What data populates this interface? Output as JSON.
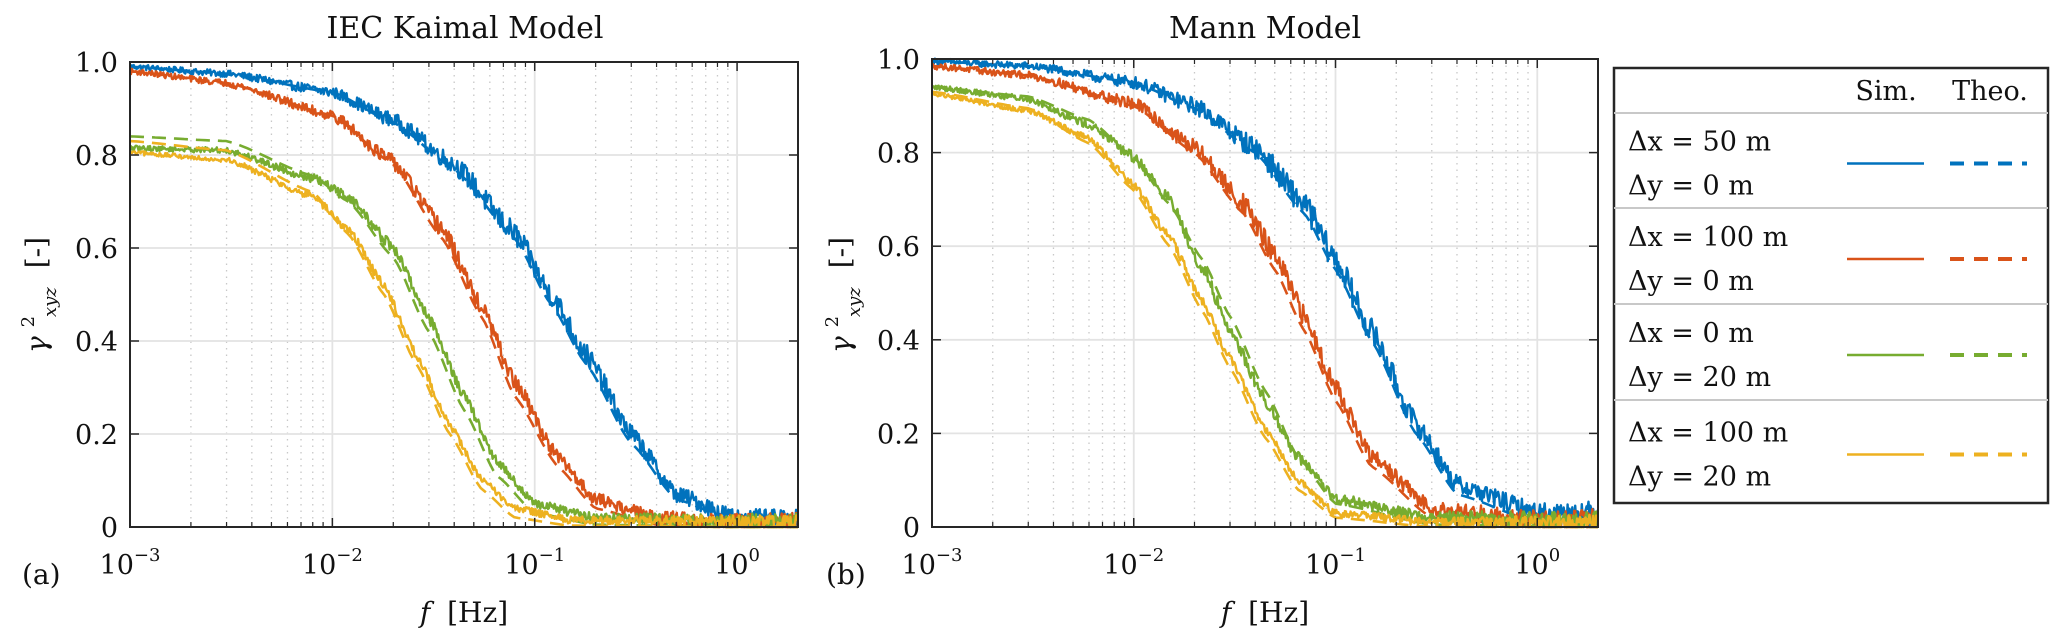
{
  "figure": {
    "colors": {
      "blue": "#0072BD",
      "red": "#D95319",
      "green": "#77AC30",
      "yellow": "#EDB120",
      "grid": "#e3e3e3",
      "axis": "#262626"
    },
    "legend": {
      "header_sim": "Sim.",
      "header_theo": "Theo.",
      "entries": [
        {
          "line1": "Δx = 50 m",
          "line2": "Δy = 0 m",
          "color_key": "blue"
        },
        {
          "line1": "Δx = 100 m",
          "line2": "Δy = 0 m",
          "color_key": "red"
        },
        {
          "line1": "Δx = 0 m",
          "line2": "Δy = 20 m",
          "color_key": "green"
        },
        {
          "line1": "Δx = 100 m",
          "line2": "Δy = 20 m",
          "color_key": "yellow"
        }
      ]
    }
  },
  "chart_data": [
    {
      "type": "line",
      "panel_label": "(a)",
      "title": "IEC Kaimal Model",
      "xlabel_symbol": "f",
      "xlabel_unit": "[Hz]",
      "ylabel_symbol": "γ",
      "ylabel_sup": "2",
      "ylabel_sub": "xyz",
      "ylabel_unit": "[-]",
      "xscale": "log",
      "xlim": [
        0.001,
        2
      ],
      "ylim": [
        0,
        1
      ],
      "xticks": [
        {
          "v": 0.001,
          "base": "10",
          "exp": "−3"
        },
        {
          "v": 0.01,
          "base": "10",
          "exp": "−2"
        },
        {
          "v": 0.1,
          "base": "10",
          "exp": "−1"
        },
        {
          "v": 1,
          "base": "10",
          "exp": "0"
        }
      ],
      "yticks": [
        {
          "v": 0,
          "label": "0"
        },
        {
          "v": 0.2,
          "label": "0.2"
        },
        {
          "v": 0.4,
          "label": "0.4"
        },
        {
          "v": 0.6,
          "label": "0.6"
        },
        {
          "v": 0.8,
          "label": "0.8"
        },
        {
          "v": 1.0,
          "label": "1.0"
        }
      ],
      "grid": true,
      "series": [
        {
          "name": "Δx = 50 m, Δy = 0 m",
          "color_key": "blue",
          "theo": {
            "f": [
              0.001,
              0.003,
              0.01,
              0.02,
              0.04,
              0.08,
              0.12,
              0.18,
              0.3,
              0.5,
              1,
              2
            ],
            "y": [
              0.99,
              0.975,
              0.935,
              0.87,
              0.77,
              0.62,
              0.48,
              0.35,
              0.18,
              0.06,
              0.01,
              0.005
            ]
          },
          "sim": {
            "f": [
              0.001,
              0.003,
              0.01,
              0.02,
              0.04,
              0.08,
              0.12,
              0.18,
              0.3,
              0.5,
              1,
              2
            ],
            "y": [
              0.99,
              0.975,
              0.935,
              0.875,
              0.78,
              0.63,
              0.5,
              0.37,
              0.2,
              0.07,
              0.02,
              0.015
            ],
            "noise": 0.04
          }
        },
        {
          "name": "Δx = 100 m, Δy = 0 m",
          "color_key": "red",
          "theo": {
            "f": [
              0.001,
              0.003,
              0.01,
              0.02,
              0.035,
              0.055,
              0.08,
              0.13,
              0.2,
              0.4,
              1,
              2
            ],
            "y": [
              0.98,
              0.955,
              0.885,
              0.78,
              0.62,
              0.45,
              0.28,
              0.13,
              0.04,
              0.005,
              0.0,
              0.0
            ]
          },
          "sim": {
            "f": [
              0.001,
              0.003,
              0.01,
              0.02,
              0.035,
              0.055,
              0.08,
              0.13,
              0.2,
              0.4,
              1,
              2
            ],
            "y": [
              0.98,
              0.955,
              0.885,
              0.785,
              0.64,
              0.47,
              0.31,
              0.15,
              0.06,
              0.02,
              0.01,
              0.01
            ],
            "noise": 0.04
          }
        },
        {
          "name": "Δx = 0 m, Δy = 20 m",
          "color_key": "green",
          "theo": {
            "f": [
              0.001,
              0.003,
              0.008,
              0.012,
              0.02,
              0.03,
              0.045,
              0.065,
              0.1,
              0.2,
              1,
              2
            ],
            "y": [
              0.84,
              0.83,
              0.755,
              0.7,
              0.58,
              0.42,
              0.25,
              0.11,
              0.03,
              0.005,
              0.0,
              0.0
            ]
          },
          "sim": {
            "f": [
              0.001,
              0.003,
              0.008,
              0.012,
              0.02,
              0.03,
              0.045,
              0.065,
              0.1,
              0.2,
              1,
              2
            ],
            "y": [
              0.815,
              0.81,
              0.75,
              0.71,
              0.6,
              0.45,
              0.28,
              0.14,
              0.05,
              0.02,
              0.012,
              0.012
            ],
            "noise": 0.035
          }
        },
        {
          "name": "Δx = 100 m, Δy = 20 m",
          "color_key": "yellow",
          "theo": {
            "f": [
              0.001,
              0.003,
              0.008,
              0.012,
              0.018,
              0.026,
              0.038,
              0.055,
              0.08,
              0.15,
              1,
              2
            ],
            "y": [
              0.83,
              0.81,
              0.72,
              0.63,
              0.5,
              0.35,
              0.2,
              0.08,
              0.02,
              0.003,
              0.0,
              0.0
            ]
          },
          "sim": {
            "f": [
              0.001,
              0.003,
              0.008,
              0.012,
              0.018,
              0.026,
              0.038,
              0.055,
              0.08,
              0.15,
              1,
              2
            ],
            "y": [
              0.805,
              0.79,
              0.71,
              0.64,
              0.52,
              0.37,
              0.22,
              0.1,
              0.04,
              0.015,
              0.012,
              0.012
            ],
            "noise": 0.03
          }
        }
      ]
    },
    {
      "type": "line",
      "panel_label": "(b)",
      "title": "Mann Model",
      "xlabel_symbol": "f",
      "xlabel_unit": "[Hz]",
      "ylabel_symbol": "γ",
      "ylabel_sup": "2",
      "ylabel_sub": "xyz",
      "ylabel_unit": "[-]",
      "xscale": "log",
      "xlim": [
        0.001,
        2
      ],
      "ylim": [
        0,
        1
      ],
      "xticks": [
        {
          "v": 0.001,
          "base": "10",
          "exp": "−3"
        },
        {
          "v": 0.01,
          "base": "10",
          "exp": "−2"
        },
        {
          "v": 0.1,
          "base": "10",
          "exp": "−1"
        },
        {
          "v": 1,
          "base": "10",
          "exp": "0"
        }
      ],
      "yticks": [
        {
          "v": 0,
          "label": "0"
        },
        {
          "v": 0.2,
          "label": "0.2"
        },
        {
          "v": 0.4,
          "label": "0.4"
        },
        {
          "v": 0.6,
          "label": "0.6"
        },
        {
          "v": 0.8,
          "label": "0.8"
        },
        {
          "v": 1.0,
          "label": "1.0"
        }
      ],
      "grid": true,
      "series": [
        {
          "name": "Δx = 50 m, Δy = 0 m",
          "color_key": "blue",
          "theo": {
            "f": [
              0.001,
              0.003,
              0.01,
              0.02,
              0.04,
              0.07,
              0.1,
              0.15,
              0.25,
              0.4,
              1,
              2
            ],
            "y": [
              0.995,
              0.985,
              0.95,
              0.895,
              0.8,
              0.67,
              0.55,
              0.4,
              0.2,
              0.07,
              0.01,
              0.005
            ]
          },
          "sim": {
            "f": [
              0.001,
              0.003,
              0.01,
              0.02,
              0.04,
              0.07,
              0.1,
              0.15,
              0.25,
              0.4,
              1,
              2
            ],
            "y": [
              0.995,
              0.985,
              0.95,
              0.9,
              0.81,
              0.69,
              0.57,
              0.42,
              0.22,
              0.09,
              0.03,
              0.03
            ],
            "noise": 0.045
          }
        },
        {
          "name": "Δx = 100 m, Δy = 0 m",
          "color_key": "red",
          "theo": {
            "f": [
              0.001,
              0.003,
              0.01,
              0.02,
              0.035,
              0.05,
              0.07,
              0.1,
              0.15,
              0.3,
              1,
              2
            ],
            "y": [
              0.985,
              0.965,
              0.9,
              0.8,
              0.67,
              0.55,
              0.42,
              0.27,
              0.13,
              0.02,
              0.0,
              0.0
            ]
          },
          "sim": {
            "f": [
              0.001,
              0.003,
              0.01,
              0.02,
              0.035,
              0.05,
              0.07,
              0.1,
              0.15,
              0.3,
              1,
              2
            ],
            "y": [
              0.985,
              0.965,
              0.905,
              0.81,
              0.69,
              0.58,
              0.45,
              0.3,
              0.15,
              0.04,
              0.015,
              0.015
            ],
            "noise": 0.045
          }
        },
        {
          "name": "Δx = 0 m, Δy = 20 m",
          "color_key": "green",
          "theo": {
            "f": [
              0.001,
              0.003,
              0.006,
              0.01,
              0.015,
              0.022,
              0.03,
              0.045,
              0.065,
              0.1,
              0.3,
              2
            ],
            "y": [
              0.94,
              0.92,
              0.87,
              0.79,
              0.69,
              0.57,
              0.45,
              0.29,
              0.15,
              0.05,
              0.005,
              0.0
            ]
          },
          "sim": {
            "f": [
              0.001,
              0.003,
              0.006,
              0.01,
              0.015,
              0.022,
              0.03,
              0.045,
              0.065,
              0.1,
              0.3,
              2
            ],
            "y": [
              0.94,
              0.915,
              0.86,
              0.79,
              0.7,
              0.55,
              0.42,
              0.27,
              0.15,
              0.06,
              0.02,
              0.012
            ],
            "noise": 0.04
          }
        },
        {
          "name": "Δx = 100 m, Δy = 20 m",
          "color_key": "yellow",
          "theo": {
            "f": [
              0.001,
              0.003,
              0.006,
              0.01,
              0.015,
              0.022,
              0.03,
              0.045,
              0.065,
              0.1,
              0.3,
              2
            ],
            "y": [
              0.93,
              0.895,
              0.82,
              0.72,
              0.6,
              0.46,
              0.34,
              0.19,
              0.08,
              0.02,
              0.0,
              0.0
            ]
          },
          "sim": {
            "f": [
              0.001,
              0.003,
              0.006,
              0.01,
              0.015,
              0.022,
              0.03,
              0.045,
              0.065,
              0.1,
              0.3,
              2
            ],
            "y": [
              0.925,
              0.89,
              0.83,
              0.73,
              0.62,
              0.48,
              0.36,
              0.21,
              0.1,
              0.03,
              0.01,
              0.01
            ],
            "noise": 0.03
          }
        }
      ]
    }
  ]
}
